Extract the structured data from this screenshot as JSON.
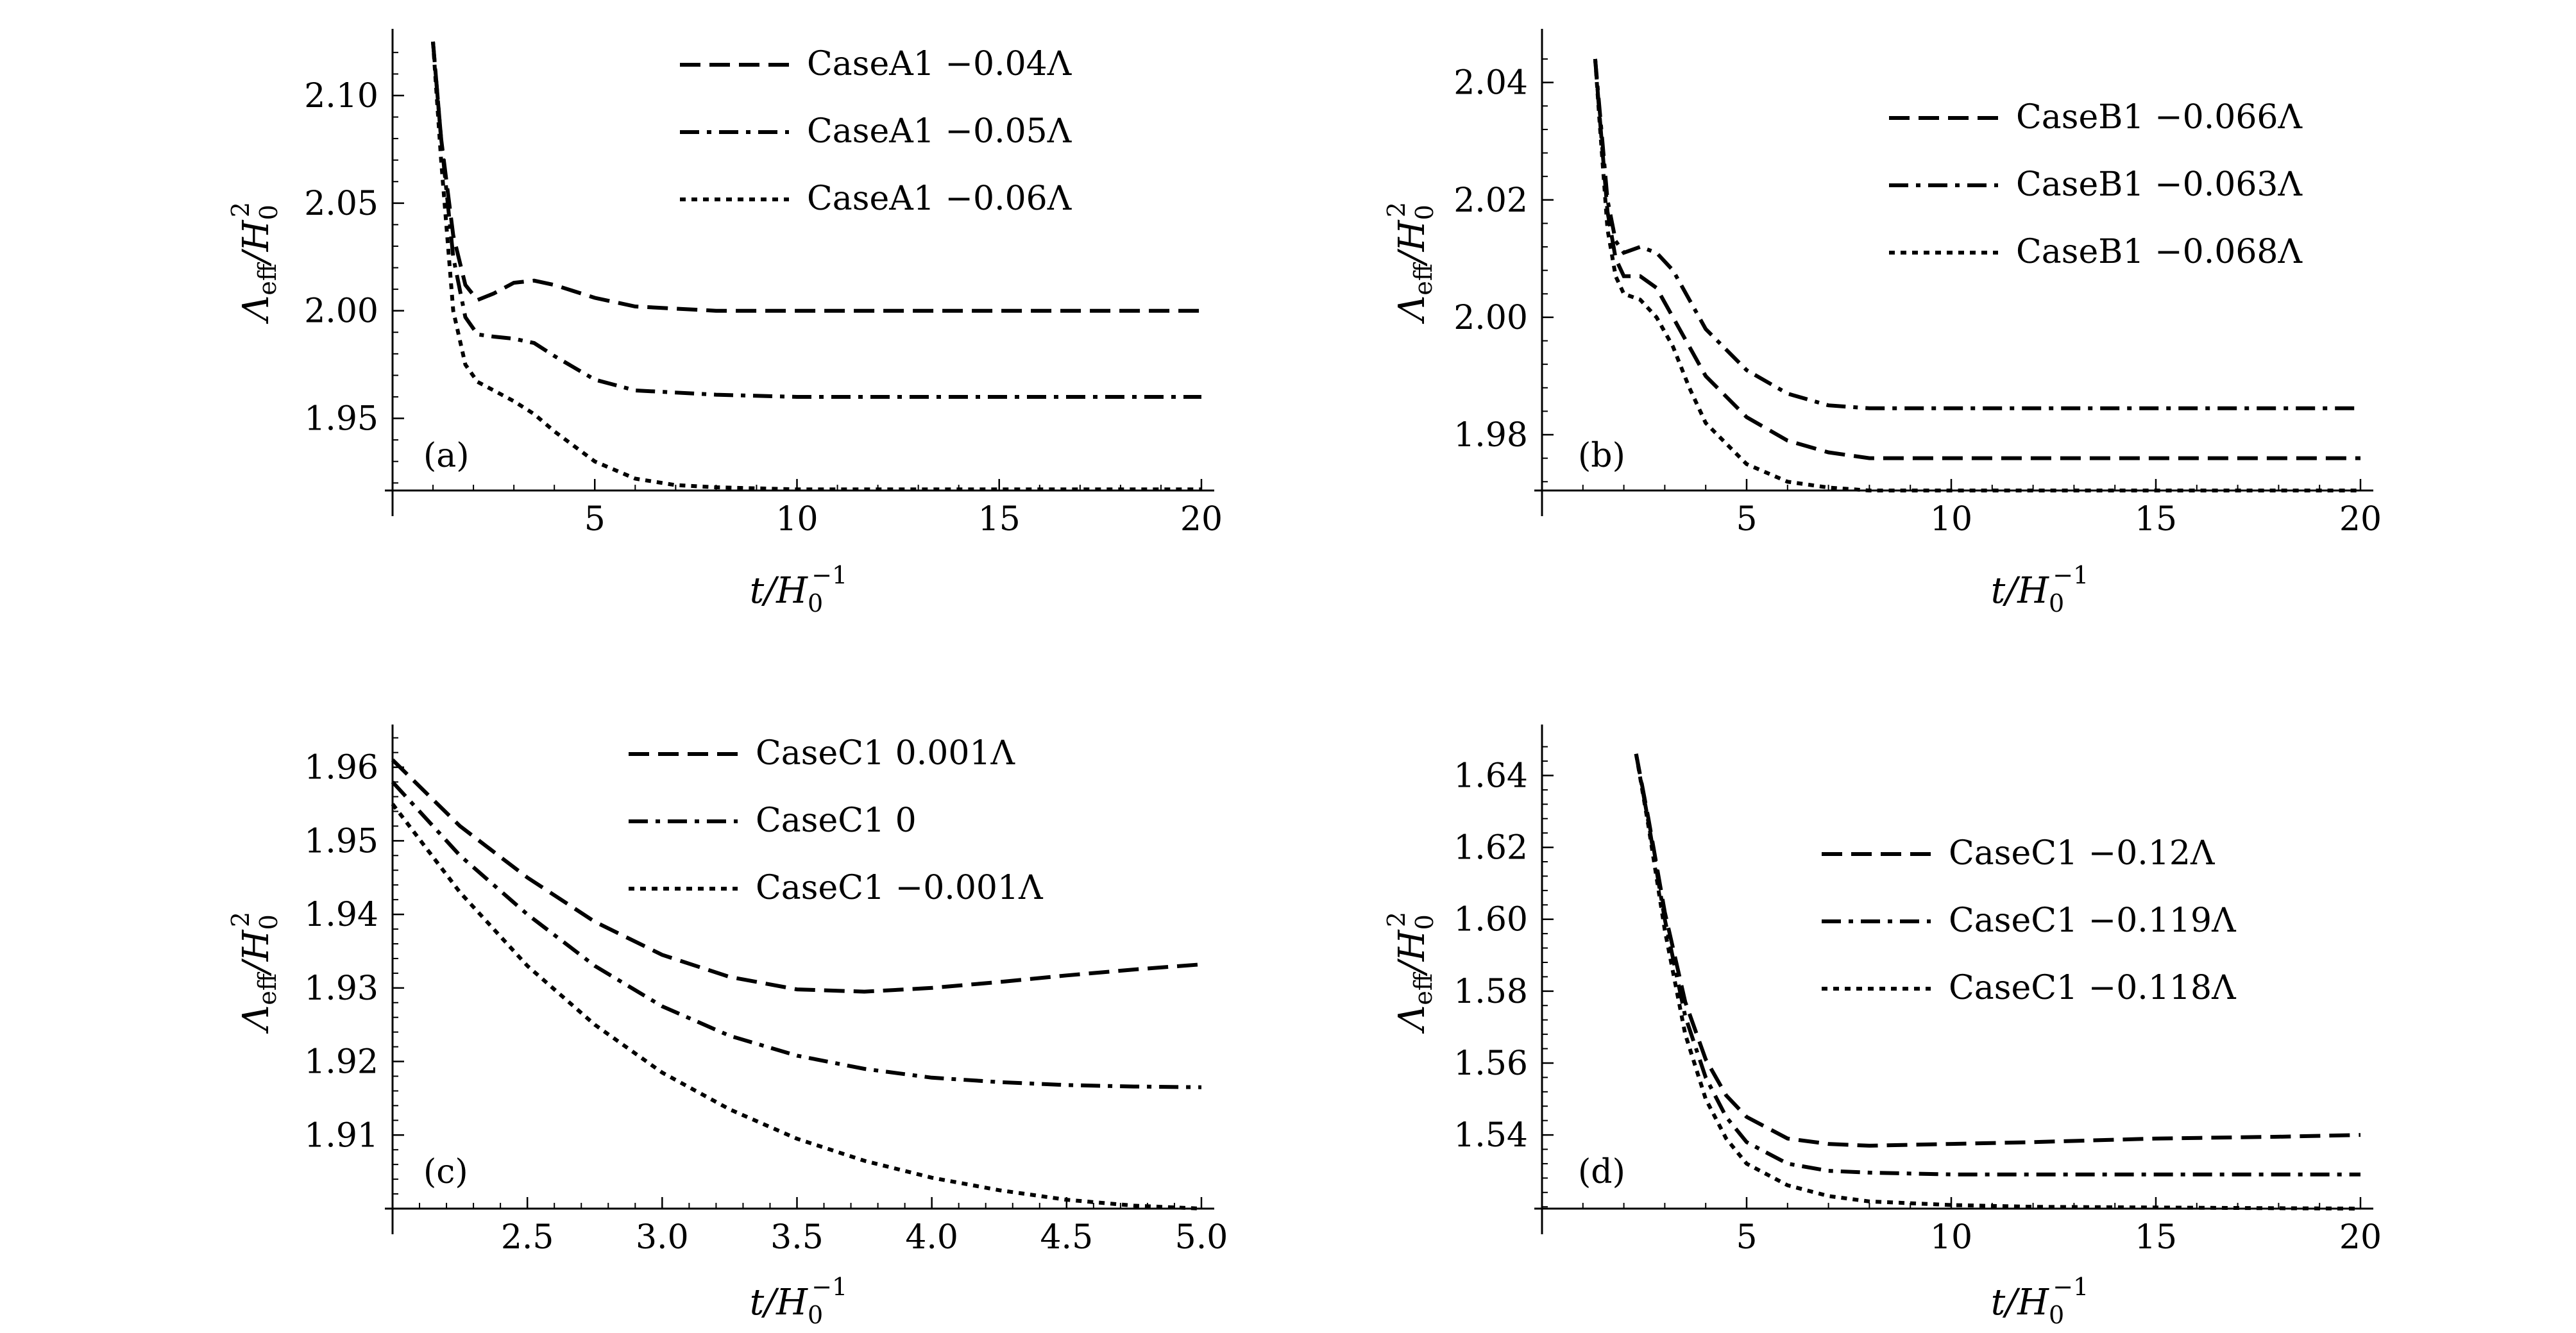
{
  "chart_data": [
    {
      "panel": "(a)",
      "type": "line",
      "xlabel": "t/H0^-1",
      "ylabel": "Λeff/H0^2",
      "xlim": [
        0,
        20
      ],
      "ylim": [
        1.9165,
        2.1265
      ],
      "xticks": [
        5,
        10,
        15,
        20
      ],
      "yticks": [
        1.95,
        2.0,
        2.05,
        2.1
      ],
      "xtick_labels": [
        "5",
        "10",
        "15",
        "20"
      ],
      "ytick_labels": [
        "1.95",
        "2.00",
        "2.05",
        "2.10"
      ],
      "legend_position": "top-right",
      "grid": false,
      "series": [
        {
          "name": "CaseA1 −0.04Λ",
          "dash": "dashed",
          "x": [
            1.0,
            1.2,
            1.5,
            1.8,
            2.1,
            2.5,
            3.0,
            3.5,
            4.0,
            5.0,
            6.0,
            8.0,
            10.0,
            15.0,
            20.0
          ],
          "y": [
            2.125,
            2.08,
            2.035,
            2.012,
            2.005,
            2.008,
            2.013,
            2.014,
            2.012,
            2.006,
            2.002,
            2.0,
            2.0,
            2.0,
            2.0
          ]
        },
        {
          "name": "CaseA1 −0.05Λ",
          "dash": "dashdot",
          "x": [
            1.0,
            1.2,
            1.5,
            1.8,
            2.1,
            2.5,
            3.0,
            3.5,
            4.0,
            5.0,
            6.0,
            8.0,
            10.0,
            15.0,
            20.0
          ],
          "y": [
            2.125,
            2.08,
            2.025,
            1.997,
            1.989,
            1.988,
            1.987,
            1.985,
            1.979,
            1.968,
            1.963,
            1.961,
            1.96,
            1.96,
            1.96
          ]
        },
        {
          "name": "CaseA1 −0.06Λ",
          "dash": "dotted",
          "x": [
            1.0,
            1.2,
            1.5,
            1.8,
            2.1,
            2.5,
            3.0,
            3.5,
            4.0,
            5.0,
            6.0,
            7.0,
            8.0,
            10.0,
            15.0,
            20.0
          ],
          "y": [
            2.125,
            2.07,
            2.0,
            1.975,
            1.967,
            1.963,
            1.958,
            1.952,
            1.944,
            1.93,
            1.922,
            1.919,
            1.918,
            1.917,
            1.917,
            1.917
          ]
        }
      ]
    },
    {
      "panel": "(b)",
      "type": "line",
      "xlabel": "t/H0^-1",
      "ylabel": "Λeff/H0^2",
      "xlim": [
        0,
        20
      ],
      "ylim": [
        1.9705,
        2.0475
      ],
      "xticks": [
        5,
        10,
        15,
        20
      ],
      "yticks": [
        1.98,
        2.0,
        2.02,
        2.04
      ],
      "xtick_labels": [
        "5",
        "10",
        "15",
        "20"
      ],
      "ytick_labels": [
        "1.98",
        "2.00",
        "2.02",
        "2.04"
      ],
      "legend_position": "top-right",
      "grid": false,
      "series": [
        {
          "name": "CaseB1 −0.066Λ",
          "dash": "dashed",
          "x": [
            1.3,
            1.4,
            1.6,
            1.8,
            2.0,
            2.4,
            2.8,
            3.2,
            3.6,
            4.0,
            5.0,
            6.0,
            7.0,
            8.0,
            10.0,
            15.0,
            20.0
          ],
          "y": [
            2.044,
            2.035,
            2.018,
            2.01,
            2.007,
            2.007,
            2.005,
            2.0,
            1.995,
            1.99,
            1.983,
            1.979,
            1.977,
            1.976,
            1.976,
            1.976,
            1.976
          ]
        },
        {
          "name": "CaseB1 −0.063Λ",
          "dash": "dashdot",
          "x": [
            1.3,
            1.4,
            1.6,
            1.8,
            2.0,
            2.4,
            2.8,
            3.2,
            3.6,
            4.0,
            5.0,
            6.0,
            7.0,
            8.0,
            10.0,
            15.0,
            20.0
          ],
          "y": [
            2.044,
            2.036,
            2.02,
            2.013,
            2.011,
            2.012,
            2.011,
            2.008,
            2.003,
            1.998,
            1.991,
            1.987,
            1.985,
            1.9845,
            1.9845,
            1.9845,
            1.9845
          ]
        },
        {
          "name": "CaseB1 −0.068Λ",
          "dash": "dotted",
          "x": [
            1.3,
            1.4,
            1.6,
            1.8,
            2.0,
            2.4,
            2.8,
            3.2,
            3.6,
            4.0,
            5.0,
            6.0,
            7.0,
            8.0,
            10.0,
            15.0,
            20.0
          ],
          "y": [
            2.044,
            2.034,
            2.015,
            2.007,
            2.004,
            2.003,
            2.0,
            1.995,
            1.988,
            1.982,
            1.975,
            1.972,
            1.971,
            1.9705,
            1.9705,
            1.9705,
            1.9705
          ]
        }
      ]
    },
    {
      "panel": "(c)",
      "type": "line",
      "xlabel": "t/H0^-1",
      "ylabel": "Λeff/H0^2",
      "xlim": [
        2.0,
        5.0
      ],
      "ylim": [
        1.9,
        1.9645
      ],
      "xticks": [
        2.5,
        3.0,
        3.5,
        4.0,
        4.5,
        5.0
      ],
      "yticks": [
        1.91,
        1.92,
        1.93,
        1.94,
        1.95,
        1.96
      ],
      "xtick_labels": [
        "2.5",
        "3.0",
        "3.5",
        "4.0",
        "4.5",
        "5.0"
      ],
      "ytick_labels": [
        "1.91",
        "1.92",
        "1.93",
        "1.94",
        "1.95",
        "1.96"
      ],
      "legend_position": "top-right",
      "grid": false,
      "series": [
        {
          "name": "CaseC1 0.001Λ",
          "dash": "dashed",
          "x": [
            2.0,
            2.25,
            2.5,
            2.75,
            3.0,
            3.25,
            3.5,
            3.75,
            4.0,
            4.25,
            4.5,
            4.75,
            5.0
          ],
          "y": [
            1.961,
            1.952,
            1.945,
            1.939,
            1.9345,
            1.9315,
            1.9298,
            1.9295,
            1.93,
            1.9308,
            1.9317,
            1.9325,
            1.9332
          ]
        },
        {
          "name": "CaseC1 0",
          "dash": "dashdot",
          "x": [
            2.0,
            2.25,
            2.5,
            2.75,
            3.0,
            3.25,
            3.5,
            3.75,
            4.0,
            4.25,
            4.5,
            4.75,
            5.0
          ],
          "y": [
            1.958,
            1.948,
            1.94,
            1.933,
            1.9275,
            1.9235,
            1.9208,
            1.919,
            1.9178,
            1.9172,
            1.9168,
            1.9166,
            1.9165
          ]
        },
        {
          "name": "CaseC1 −0.001Λ",
          "dash": "dotted",
          "x": [
            2.0,
            2.25,
            2.5,
            2.75,
            3.0,
            3.25,
            3.5,
            3.75,
            4.0,
            4.25,
            4.5,
            4.75,
            5.0
          ],
          "y": [
            1.955,
            1.943,
            1.933,
            1.925,
            1.9185,
            1.9135,
            1.9095,
            1.9065,
            1.9042,
            1.9025,
            1.9012,
            1.9004,
            1.9
          ]
        }
      ]
    },
    {
      "panel": "(d)",
      "type": "line",
      "xlabel": "t/H0^-1",
      "ylabel": "Λeff/H0^2",
      "xlim": [
        0,
        20
      ],
      "ylim": [
        1.5195,
        1.6515
      ],
      "xticks": [
        5,
        10,
        15,
        20
      ],
      "yticks": [
        1.54,
        1.56,
        1.58,
        1.6,
        1.62,
        1.64
      ],
      "xtick_labels": [
        "5",
        "10",
        "15",
        "20"
      ],
      "ytick_labels": [
        "1.54",
        "1.56",
        "1.58",
        "1.60",
        "1.62",
        "1.64"
      ],
      "legend_position": "top-right",
      "grid": false,
      "series": [
        {
          "name": "CaseC1 −0.12Λ",
          "dash": "dashed",
          "x": [
            2.3,
            2.6,
            3.0,
            3.5,
            4.0,
            4.5,
            5.0,
            6.0,
            7.0,
            8.0,
            10.0,
            12.0,
            15.0,
            18.0,
            20.0
          ],
          "y": [
            1.646,
            1.628,
            1.602,
            1.577,
            1.561,
            1.551,
            1.545,
            1.539,
            1.5375,
            1.537,
            1.5375,
            1.538,
            1.539,
            1.5395,
            1.54
          ]
        },
        {
          "name": "CaseC1 −0.119Λ",
          "dash": "dashdot",
          "x": [
            2.3,
            2.6,
            3.0,
            3.5,
            4.0,
            4.5,
            5.0,
            6.0,
            7.0,
            8.0,
            10.0,
            12.0,
            15.0,
            18.0,
            20.0
          ],
          "y": [
            1.646,
            1.627,
            1.6,
            1.573,
            1.556,
            1.545,
            1.538,
            1.532,
            1.53,
            1.5295,
            1.529,
            1.529,
            1.529,
            1.529,
            1.529
          ]
        },
        {
          "name": "CaseC1 −0.118Λ",
          "dash": "dotted",
          "x": [
            2.3,
            2.6,
            3.0,
            3.5,
            4.0,
            4.5,
            5.0,
            6.0,
            7.0,
            8.0,
            10.0,
            12.0,
            15.0,
            18.0,
            20.0
          ],
          "y": [
            1.646,
            1.626,
            1.597,
            1.568,
            1.55,
            1.539,
            1.532,
            1.526,
            1.523,
            1.5215,
            1.5205,
            1.52,
            1.5198,
            1.5196,
            1.5195
          ]
        }
      ]
    }
  ]
}
